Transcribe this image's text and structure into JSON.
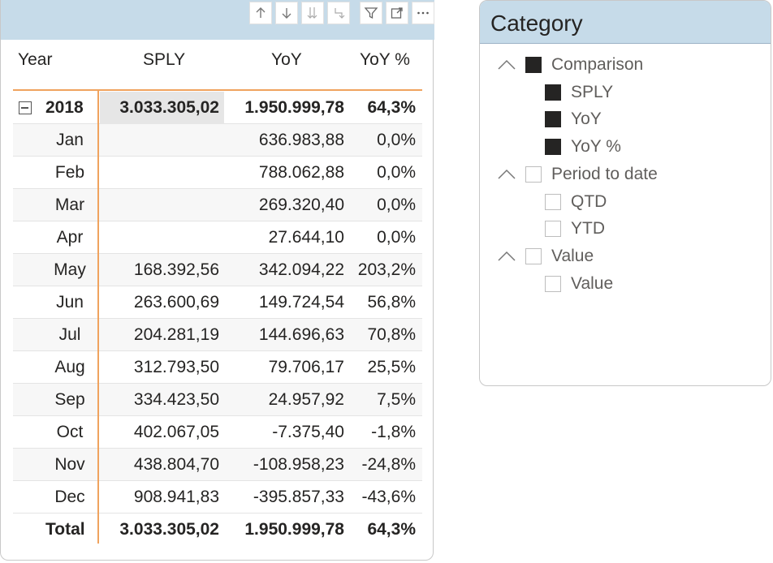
{
  "matrix": {
    "columns": {
      "year": "Year",
      "sply": "SPLY",
      "yoy": "YoY",
      "yoy_pct": "YoY %"
    },
    "year_row": {
      "label": "2018",
      "sply": "3.033.305,02",
      "yoy": "1.950.999,78",
      "yoy_pct": "64,3%"
    },
    "rows": [
      {
        "month": "Jan",
        "sply": "",
        "yoy": "636.983,88",
        "yoy_pct": "0,0%"
      },
      {
        "month": "Feb",
        "sply": "",
        "yoy": "788.062,88",
        "yoy_pct": "0,0%"
      },
      {
        "month": "Mar",
        "sply": "",
        "yoy": "269.320,40",
        "yoy_pct": "0,0%"
      },
      {
        "month": "Apr",
        "sply": "",
        "yoy": "27.644,10",
        "yoy_pct": "0,0%"
      },
      {
        "month": "May",
        "sply": "168.392,56",
        "yoy": "342.094,22",
        "yoy_pct": "203,2%"
      },
      {
        "month": "Jun",
        "sply": "263.600,69",
        "yoy": "149.724,54",
        "yoy_pct": "56,8%"
      },
      {
        "month": "Jul",
        "sply": "204.281,19",
        "yoy": "144.696,63",
        "yoy_pct": "70,8%"
      },
      {
        "month": "Aug",
        "sply": "312.793,50",
        "yoy": "79.706,17",
        "yoy_pct": "25,5%"
      },
      {
        "month": "Sep",
        "sply": "334.423,50",
        "yoy": "24.957,92",
        "yoy_pct": "7,5%"
      },
      {
        "month": "Oct",
        "sply": "402.067,05",
        "yoy": "-7.375,40",
        "yoy_pct": "-1,8%"
      },
      {
        "month": "Nov",
        "sply": "438.804,70",
        "yoy": "-108.958,23",
        "yoy_pct": "-24,8%"
      },
      {
        "month": "Dec",
        "sply": "908.941,83",
        "yoy": "-395.857,33",
        "yoy_pct": "-43,6%"
      }
    ],
    "total_row": {
      "label": "Total",
      "sply": "3.033.305,02",
      "yoy": "1.950.999,78",
      "yoy_pct": "64,3%"
    },
    "toolbar_icons": [
      "sort-up-icon",
      "sort-down-icon",
      "expand-all-down-icon",
      "expand-next-level-icon",
      "filter-icon",
      "focus-mode-icon",
      "more-options-icon"
    ]
  },
  "slicer": {
    "title": "Category",
    "groups": [
      {
        "label": "Comparison",
        "checked": true,
        "items": [
          {
            "label": "SPLY",
            "checked": true
          },
          {
            "label": "YoY",
            "checked": true
          },
          {
            "label": "YoY %",
            "checked": true
          }
        ]
      },
      {
        "label": "Period to date",
        "checked": false,
        "items": [
          {
            "label": "QTD",
            "checked": false
          },
          {
            "label": "YTD",
            "checked": false
          }
        ]
      },
      {
        "label": "Value",
        "checked": false,
        "items": [
          {
            "label": "Value",
            "checked": false
          }
        ]
      }
    ]
  },
  "colors": {
    "header_band": "#c6dbe9",
    "accent_line": "#f0a35e",
    "checkbox_checked": "#252423"
  }
}
